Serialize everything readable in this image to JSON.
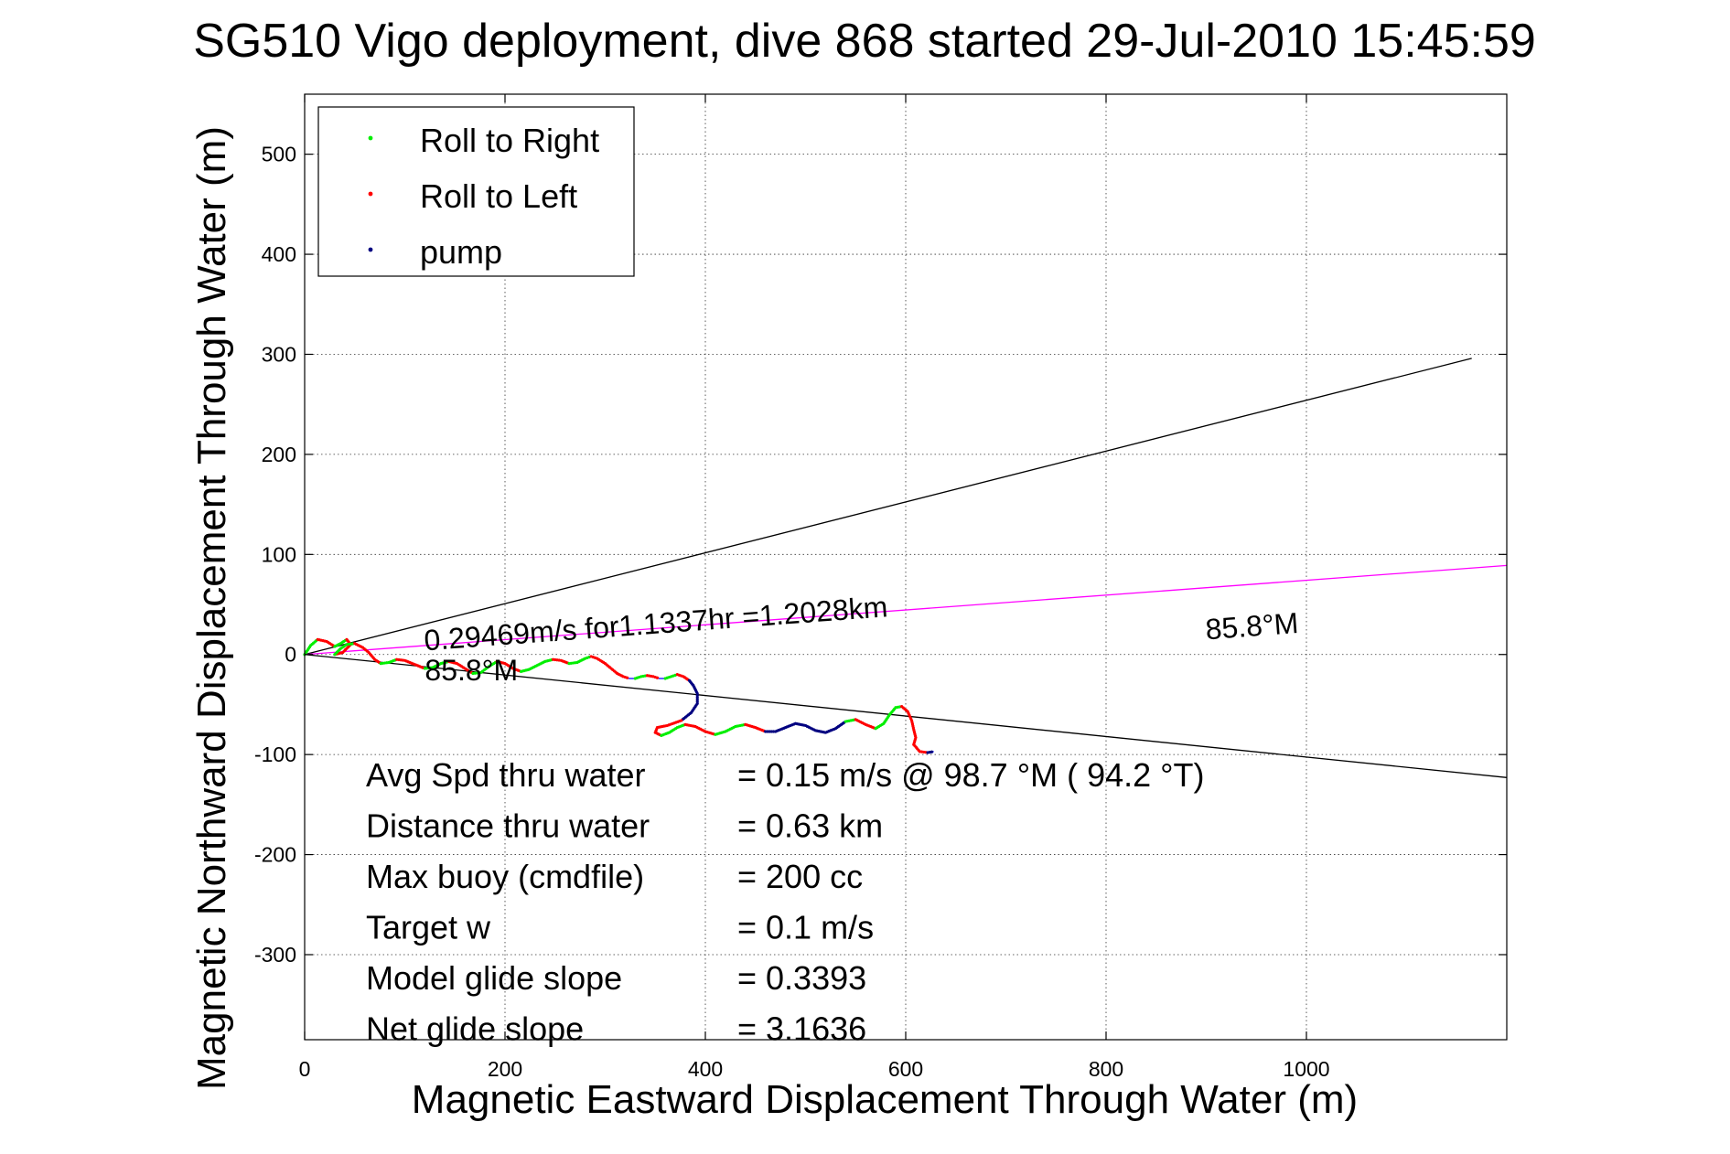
{
  "chart_data": {
    "type": "line",
    "title": "SG510 Vigo deployment, dive 868 started 29-Jul-2010 15:45:59",
    "xlabel": "Magnetic Eastward Displacement Through Water (m)",
    "ylabel": "Magnetic Northward Displacement Through Water (m)",
    "xlim": [
      0,
      1200
    ],
    "ylim": [
      -385,
      560
    ],
    "xticks": [
      0,
      200,
      400,
      600,
      800,
      1000
    ],
    "yticks": [
      500,
      400,
      300,
      200,
      100,
      0,
      -100,
      -200,
      -300
    ],
    "grid": true,
    "legend_position": "top-left",
    "legend": [
      {
        "label": "Roll to Right",
        "color": "#00ee00"
      },
      {
        "label": "Roll to Left",
        "color": "#ff0000"
      },
      {
        "label": "pump",
        "color": "#000080"
      }
    ],
    "track": {
      "color": "#0000ff",
      "points": [
        [
          0,
          0
        ],
        [
          6,
          9
        ],
        [
          13,
          15
        ],
        [
          22,
          13
        ],
        [
          30,
          8
        ],
        [
          36,
          11
        ],
        [
          42,
          15
        ],
        [
          46,
          10
        ],
        [
          38,
          2
        ],
        [
          30,
          0
        ],
        [
          36,
          6
        ],
        [
          42,
          10
        ],
        [
          50,
          11
        ],
        [
          58,
          7
        ],
        [
          64,
          2
        ],
        [
          70,
          -5
        ],
        [
          76,
          -9
        ],
        [
          84,
          -8
        ],
        [
          92,
          -5
        ],
        [
          100,
          -6
        ],
        [
          110,
          -10
        ],
        [
          120,
          -14
        ],
        [
          128,
          -13
        ],
        [
          136,
          -9
        ],
        [
          144,
          -7
        ],
        [
          152,
          -9
        ],
        [
          160,
          -14
        ],
        [
          168,
          -19
        ],
        [
          176,
          -18
        ],
        [
          184,
          -12
        ],
        [
          192,
          -7
        ],
        [
          200,
          -9
        ],
        [
          208,
          -14
        ],
        [
          216,
          -17
        ],
        [
          224,
          -15
        ],
        [
          232,
          -11
        ],
        [
          240,
          -7
        ],
        [
          248,
          -5
        ],
        [
          256,
          -6
        ],
        [
          264,
          -9
        ],
        [
          272,
          -8
        ],
        [
          280,
          -4
        ],
        [
          286,
          -2
        ],
        [
          292,
          -4
        ],
        [
          300,
          -9
        ],
        [
          306,
          -14
        ],
        [
          312,
          -19
        ],
        [
          318,
          -22
        ],
        [
          324,
          -24
        ],
        [
          330,
          -24
        ],
        [
          336,
          -22
        ],
        [
          342,
          -21
        ],
        [
          348,
          -22
        ],
        [
          354,
          -24
        ],
        [
          360,
          -24
        ],
        [
          366,
          -22
        ],
        [
          372,
          -20
        ],
        [
          378,
          -22
        ],
        [
          384,
          -26
        ],
        [
          388,
          -31
        ],
        [
          392,
          -39
        ],
        [
          392,
          -49
        ],
        [
          386,
          -58
        ],
        [
          376,
          -66
        ],
        [
          362,
          -71
        ],
        [
          352,
          -73
        ],
        [
          350,
          -78
        ],
        [
          356,
          -81
        ],
        [
          364,
          -78
        ],
        [
          372,
          -73
        ],
        [
          380,
          -70
        ],
        [
          390,
          -72
        ],
        [
          400,
          -77
        ],
        [
          410,
          -80
        ],
        [
          420,
          -77
        ],
        [
          430,
          -72
        ],
        [
          440,
          -70
        ],
        [
          450,
          -73
        ],
        [
          460,
          -77
        ],
        [
          470,
          -77
        ],
        [
          480,
          -73
        ],
        [
          490,
          -69
        ],
        [
          500,
          -71
        ],
        [
          510,
          -76
        ],
        [
          520,
          -78
        ],
        [
          530,
          -74
        ],
        [
          540,
          -67
        ],
        [
          550,
          -65
        ],
        [
          560,
          -70
        ],
        [
          570,
          -74
        ],
        [
          578,
          -69
        ],
        [
          584,
          -60
        ],
        [
          590,
          -53
        ],
        [
          596,
          -52
        ],
        [
          602,
          -57
        ],
        [
          606,
          -66
        ],
        [
          608,
          -75
        ],
        [
          610,
          -83
        ],
        [
          608,
          -90
        ],
        [
          614,
          -97
        ],
        [
          622,
          -98
        ],
        [
          628,
          -97
        ]
      ],
      "pump_segments": [
        [
          58,
          63
        ],
        [
          78,
          86
        ],
        [
          100,
          101
        ]
      ],
      "marker_spacing": 2
    },
    "heading_lines": [
      {
        "label": "85.8°M",
        "color": "#000000",
        "from": [
          0,
          0
        ],
        "to": [
          1165,
          296
        ]
      },
      {
        "label": "85.8°M",
        "color": "#000000",
        "from": [
          0,
          0
        ],
        "to": [
          1200,
          -123
        ]
      },
      {
        "label": "0.29469m/s for1.1337hr =1.2028km",
        "color": "#ff00ff",
        "from": [
          0,
          0
        ],
        "to": [
          1200,
          89
        ]
      }
    ],
    "annotations": [
      {
        "label": "0.29469m/s for1.1337hr =1.2028km",
        "x": 120,
        "y": 4,
        "angle": -4.2
      },
      {
        "label": "85.8°M",
        "x": 900,
        "y": 15,
        "angle": -4.2
      },
      {
        "label": "85.8°M",
        "x": 120,
        "y": -26,
        "angle": 0
      }
    ],
    "stats": [
      {
        "label": "Avg Spd thru water",
        "value": "=  0.15 m/s @  98.7 °M ( 94.2 °T)"
      },
      {
        "label": "Distance thru water",
        "value": "=  0.63 km"
      },
      {
        "label": "Max buoy (cmdfile)",
        "value": "= 200 cc"
      },
      {
        "label": "Target w",
        "value": "= 0.1 m/s"
      },
      {
        "label": "Model glide slope",
        "value": "= 0.3393"
      },
      {
        "label": "Net glide slope",
        "value": "= 3.1636"
      }
    ]
  }
}
